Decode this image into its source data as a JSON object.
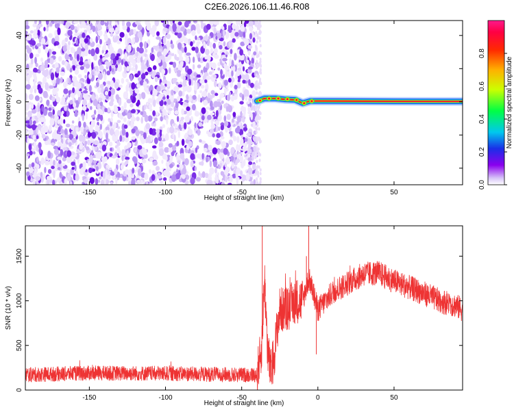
{
  "title": "C2E6.2026.106.11.46.R08",
  "chart_data": [
    {
      "type": "heatmap",
      "xlabel": "Height of straight line (km)",
      "ylabel": "Frequency (Hz)",
      "xlim": [
        -192,
        95
      ],
      "ylim": [
        -50,
        49
      ],
      "x_ticks": [
        -150,
        -100,
        -50,
        0,
        50
      ],
      "y_ticks": [
        -40,
        -20,
        0,
        20,
        40
      ],
      "noise_region_x": [
        -192,
        -40
      ],
      "carrier_line": [
        {
          "x": -40,
          "y": 0.5
        },
        {
          "x": -35,
          "y": 2.0
        },
        {
          "x": -28,
          "y": 2.0
        },
        {
          "x": -22,
          "y": 1.5
        },
        {
          "x": -15,
          "y": 1.2
        },
        {
          "x": -10,
          "y": -0.8
        },
        {
          "x": -5,
          "y": 0.5
        },
        {
          "x": 0,
          "y": 0.5
        },
        {
          "x": 50,
          "y": 0.3
        },
        {
          "x": 95,
          "y": 0.2
        }
      ],
      "colorbar": {
        "label": "Normalized spectral amplitude",
        "range": [
          0,
          1
        ],
        "ticks": [
          "0.0",
          "0.2",
          "0.4",
          "0.6",
          "0.8"
        ]
      },
      "grid": false
    },
    {
      "type": "line",
      "xlabel": "Height of straight line (km)",
      "ylabel": "SNR (10 * v/v)",
      "xlim": [
        -192,
        95
      ],
      "ylim": [
        0,
        1840
      ],
      "x_ticks": [
        -150,
        -100,
        -50,
        0,
        50
      ],
      "y_ticks": [
        0,
        500,
        1000,
        1500
      ],
      "color": "#ee3333",
      "series": [
        {
          "x": [
            -192,
            -150,
            -100,
            -50,
            -40,
            -37,
            -35,
            -33,
            -31,
            -29,
            -27,
            -25,
            -20,
            -15,
            -10,
            -6,
            -4,
            0,
            5,
            10,
            20,
            30,
            40,
            50,
            60,
            70,
            80,
            90,
            95
          ],
          "y": [
            170,
            190,
            185,
            170,
            170,
            450,
            1250,
            450,
            200,
            350,
            650,
            900,
            900,
            1000,
            1000,
            1250,
            1150,
            900,
            1000,
            1100,
            1200,
            1300,
            1310,
            1220,
            1150,
            1080,
            1000,
            950,
            900
          ]
        }
      ],
      "grid": false
    }
  ]
}
